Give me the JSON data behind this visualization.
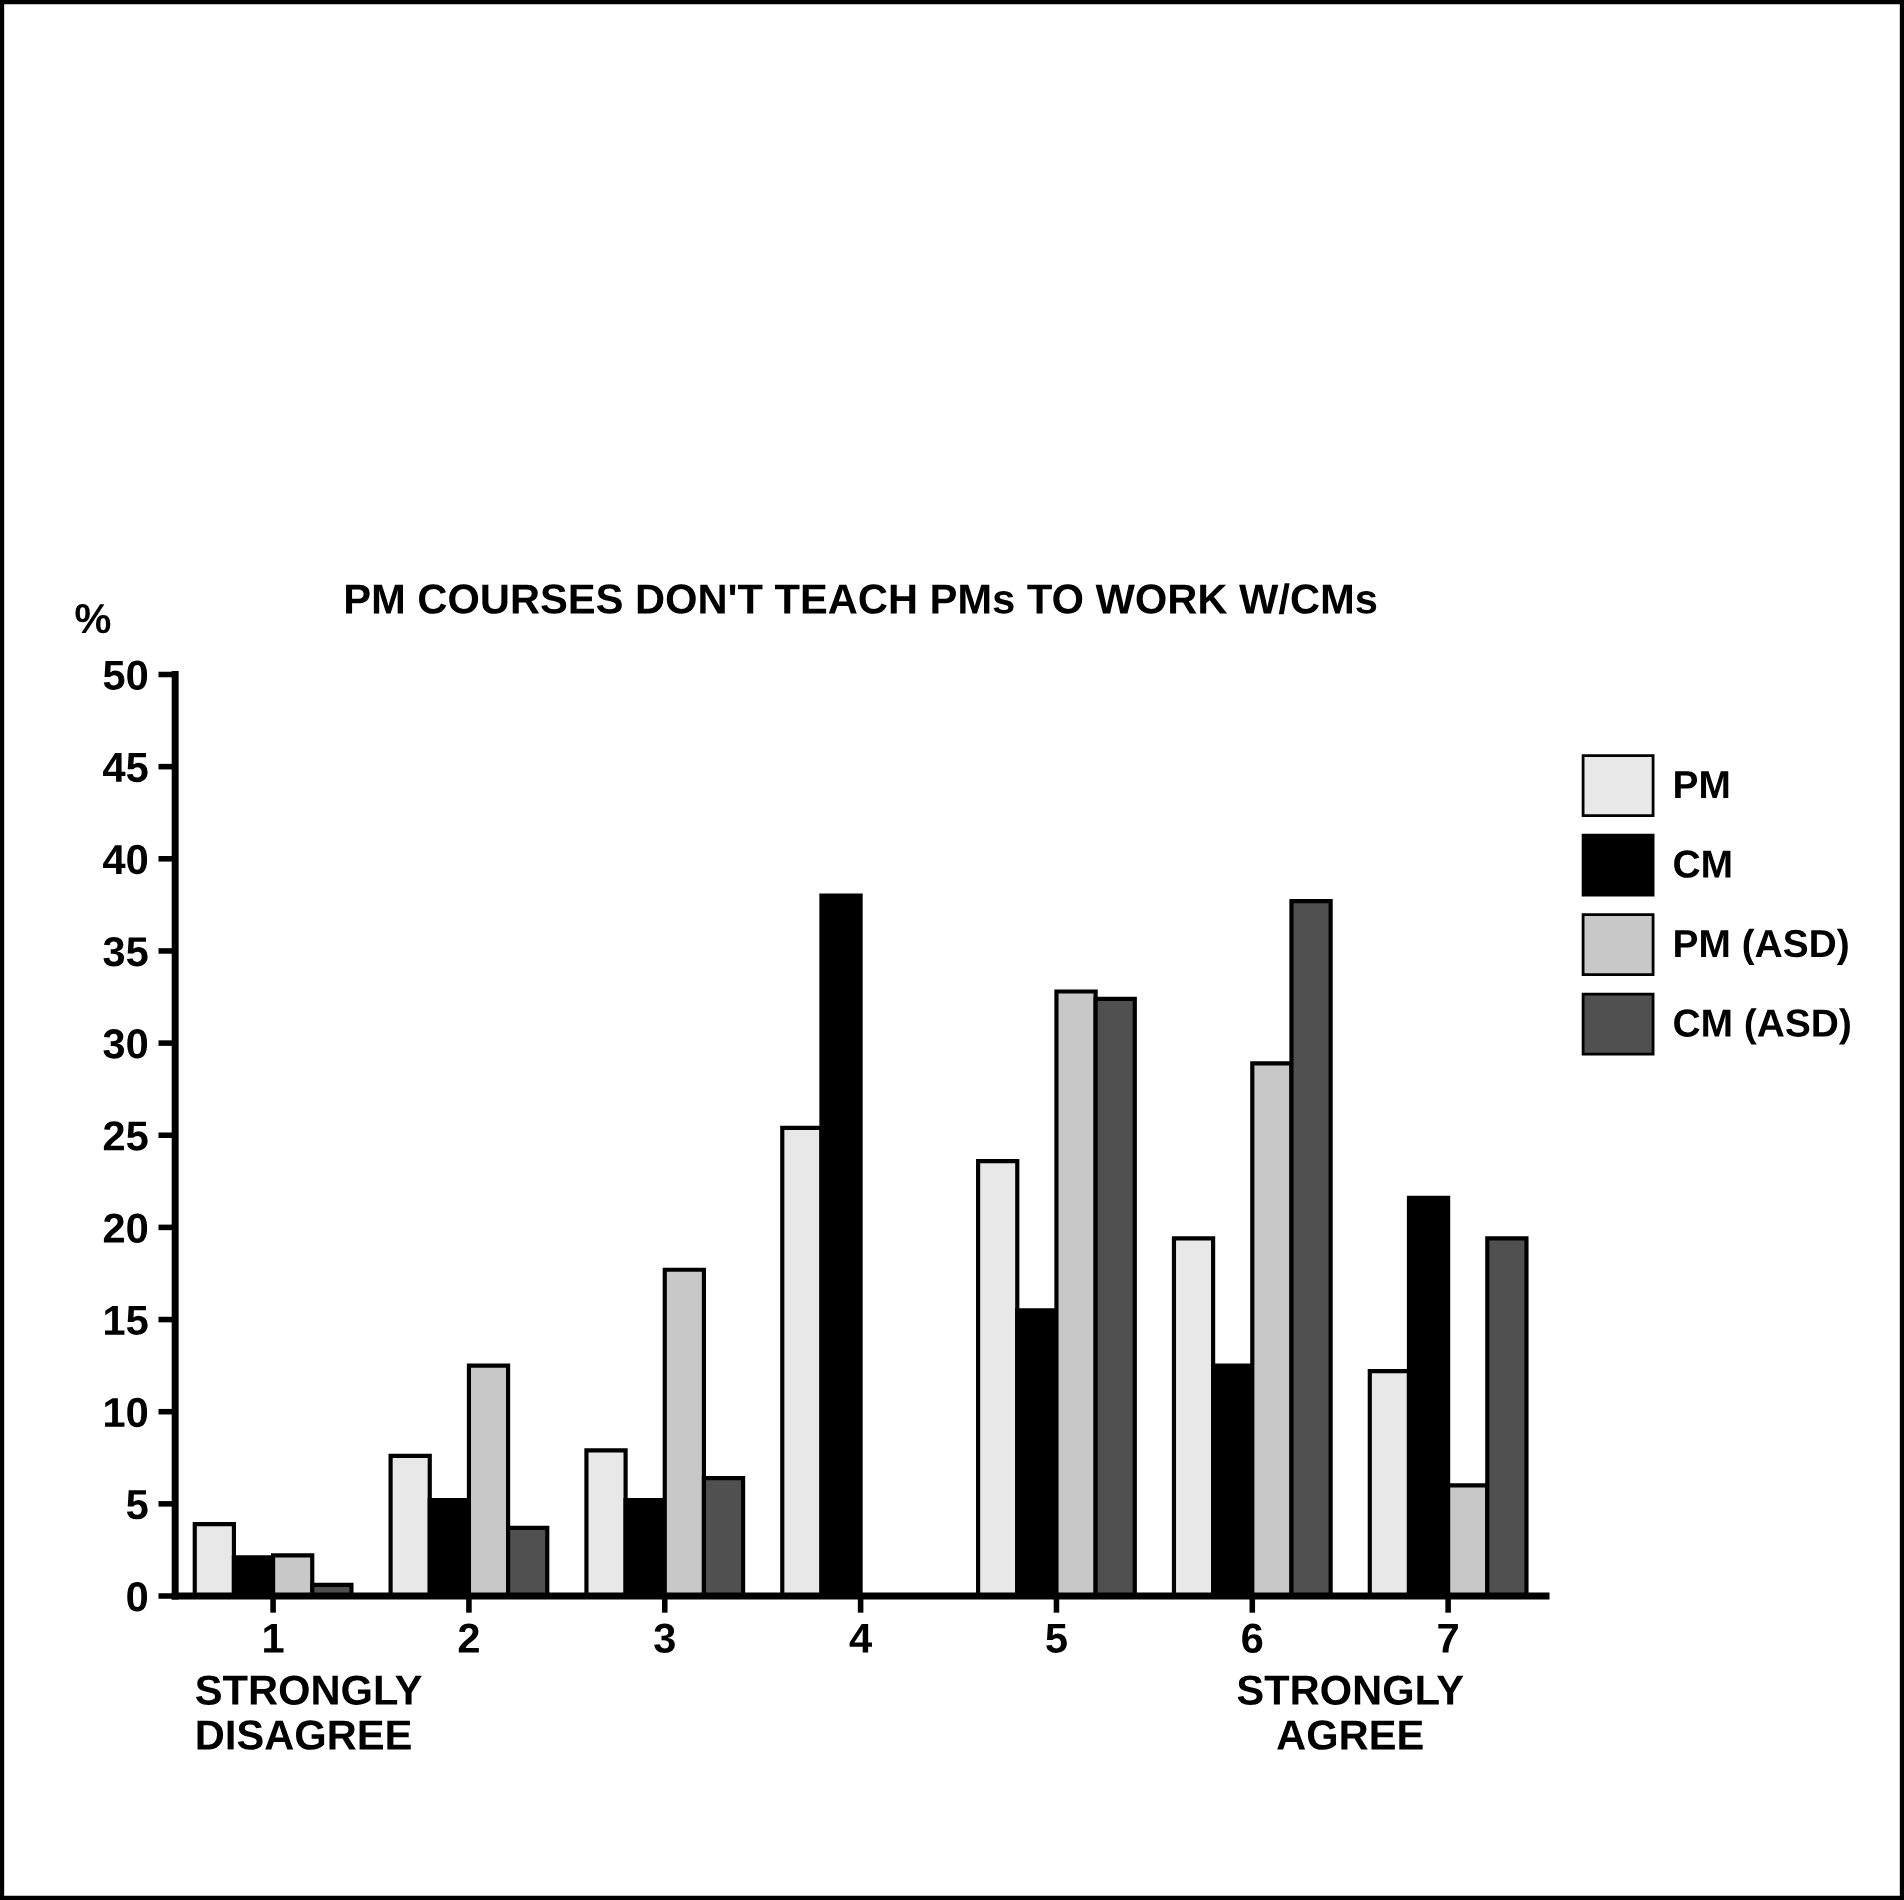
{
  "chart_data": {
    "type": "bar",
    "title": "PM COURSES DON'T TEACH PMs TO WORK W/CMs",
    "ylabel": "%",
    "categories": [
      "1",
      "2",
      "3",
      "4",
      "5",
      "6",
      "7"
    ],
    "series": [
      {
        "name": "PM",
        "color": "#e8e8e8",
        "values": [
          3.9,
          7.6,
          7.9,
          25.4,
          23.6,
          19.4,
          12.2
        ]
      },
      {
        "name": "CM",
        "color": "#000000",
        "values": [
          2.1,
          5.2,
          5.2,
          38.0,
          15.5,
          12.5,
          21.6
        ]
      },
      {
        "name": "PM (ASD)",
        "color": "#c8c8c8",
        "values": [
          2.2,
          12.5,
          17.7,
          null,
          32.8,
          28.9,
          6.0
        ]
      },
      {
        "name": "CM (ASD)",
        "color": "#505050",
        "values": [
          0.6,
          3.7,
          6.4,
          null,
          32.4,
          37.7,
          19.4
        ]
      }
    ],
    "ylim": [
      0,
      50
    ],
    "yticks": [
      0,
      5,
      10,
      15,
      20,
      25,
      30,
      35,
      40,
      45,
      50
    ],
    "annotations": [
      "STRONGLY\nDISAGREE",
      "STRONGLY\nAGREE"
    ],
    "legend": "right",
    "grid": false
  }
}
